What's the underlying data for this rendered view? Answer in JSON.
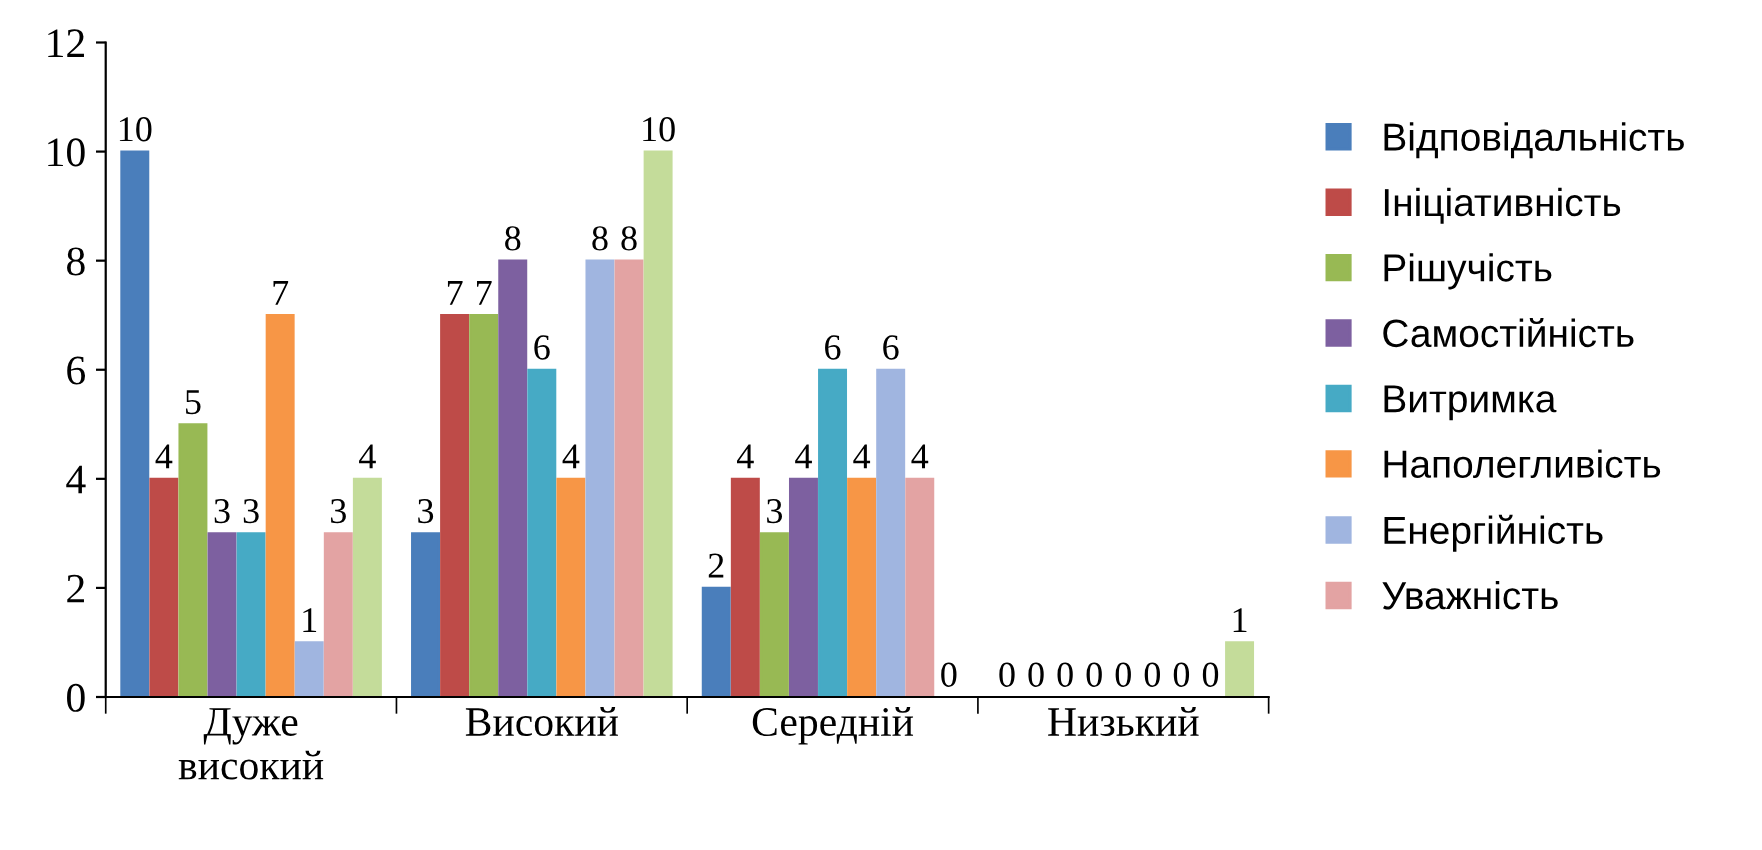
{
  "chart_data": {
    "type": "bar",
    "categories": [
      "Дуже\nвисокий",
      "Високий",
      "Середній",
      "Низький"
    ],
    "series": [
      {
        "name": "Відповідальність",
        "color": "#4a7ebb",
        "values": [
          10,
          3,
          2,
          0
        ]
      },
      {
        "name": "Ініціативність",
        "color": "#be4b48",
        "values": [
          4,
          7,
          4,
          0
        ]
      },
      {
        "name": "Рішучість",
        "color": "#98b954",
        "values": [
          5,
          7,
          3,
          0
        ]
      },
      {
        "name": "Самостійність",
        "color": "#7d60a0",
        "values": [
          3,
          8,
          4,
          0
        ]
      },
      {
        "name": "Витримка",
        "color": "#46aac5",
        "values": [
          3,
          6,
          6,
          0
        ]
      },
      {
        "name": "Наполегливість",
        "color": "#f79646",
        "values": [
          7,
          4,
          4,
          0
        ]
      },
      {
        "name": "Енергійність",
        "color": "#a0b5e0",
        "values": [
          1,
          8,
          6,
          0
        ]
      },
      {
        "name": "Уважність",
        "color": "#e3a3a3",
        "values": [
          3,
          8,
          4,
          0
        ]
      },
      {
        "color": "#c4dc9a",
        "values": [
          4,
          10,
          0,
          1
        ]
      }
    ],
    "ylim": [
      0,
      12
    ],
    "yticks": [
      0,
      2,
      4,
      6,
      8,
      10,
      12
    ],
    "data_labels": true,
    "legend": "right",
    "grid": false
  }
}
